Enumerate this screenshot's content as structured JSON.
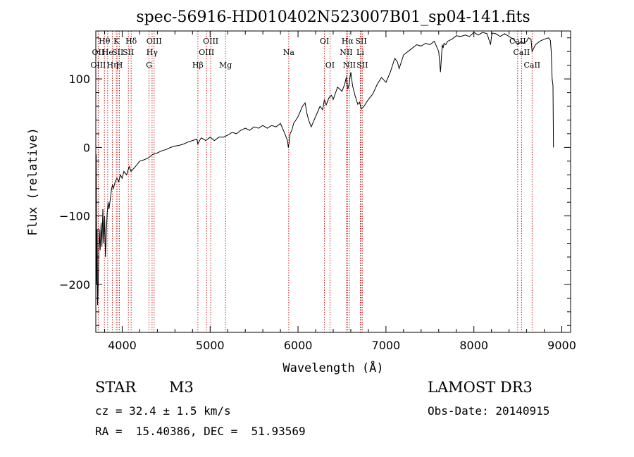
{
  "chart_data": {
    "type": "line",
    "title": "spec-56916-HD010402N523007B01_sp04-141.fits",
    "xlabel": "Wavelength (Å)",
    "ylabel": "Flux (relative)",
    "xlim": [
      3700,
      9100
    ],
    "ylim": [
      -270,
      170
    ],
    "xticks": [
      4000,
      5000,
      6000,
      7000,
      8000,
      9000
    ],
    "yticks": [
      -200,
      -100,
      0,
      100
    ],
    "grid": false,
    "series": [
      {
        "x": [
          3700,
          3705,
          3710,
          3715,
          3720,
          3730,
          3740,
          3750,
          3760,
          3770,
          3780,
          3790,
          3800,
          3810,
          3820,
          3830,
          3840,
          3850,
          3860,
          3870,
          3880,
          3890,
          3900,
          3920,
          3940,
          3960,
          3980,
          4000,
          4020,
          4050,
          4080,
          4100,
          4150,
          4200,
          4250,
          4300,
          4350,
          4400,
          4450,
          4500,
          4550,
          4600,
          4650,
          4700,
          4750,
          4800,
          4850,
          4860,
          4880,
          4900,
          4950,
          5000,
          5050,
          5100,
          5150,
          5200,
          5250,
          5300,
          5350,
          5400,
          5450,
          5500,
          5550,
          5600,
          5650,
          5700,
          5750,
          5800,
          5850,
          5880,
          5890,
          5900,
          5910,
          5930,
          5950,
          6000,
          6050,
          6080,
          6100,
          6120,
          6150,
          6200,
          6250,
          6280,
          6300,
          6320,
          6350,
          6380,
          6400,
          6450,
          6500,
          6530,
          6550,
          6565,
          6580,
          6600,
          6620,
          6650,
          6680,
          6700,
          6720,
          6750,
          6800,
          6850,
          6900,
          6950,
          7000,
          7050,
          7100,
          7130,
          7150,
          7200,
          7250,
          7300,
          7350,
          7400,
          7450,
          7500,
          7550,
          7600,
          7620,
          7640,
          7650,
          7660,
          7680,
          7700,
          7750,
          7800,
          7850,
          7900,
          7950,
          8000,
          8050,
          8100,
          8150,
          8190,
          8200,
          8210,
          8250,
          8300,
          8350,
          8400,
          8450,
          8500,
          8540,
          8560,
          8600,
          8620,
          8650,
          8662,
          8700,
          8750,
          8800,
          8850,
          8870,
          8880,
          8890,
          8900,
          8905
        ],
        "y": [
          -240,
          -10,
          -200,
          -120,
          -230,
          -190,
          -120,
          -150,
          -110,
          -145,
          -90,
          -140,
          -100,
          -160,
          -120,
          -95,
          -80,
          -90,
          -80,
          -70,
          -60,
          -55,
          -60,
          -50,
          -45,
          -50,
          -40,
          -45,
          -35,
          -40,
          -28,
          -35,
          -28,
          -20,
          -18,
          -15,
          -10,
          -8,
          -5,
          -3,
          0,
          2,
          3,
          5,
          8,
          10,
          12,
          5,
          10,
          14,
          10,
          15,
          10,
          15,
          15,
          18,
          22,
          20,
          25,
          28,
          25,
          30,
          28,
          32,
          28,
          32,
          30,
          35,
          20,
          10,
          0,
          8,
          20,
          25,
          35,
          45,
          60,
          65,
          50,
          40,
          30,
          45,
          60,
          55,
          70,
          62,
          72,
          76,
          70,
          88,
          82,
          92,
          103,
          85,
          92,
          110,
          90,
          75,
          63,
          66,
          56,
          60,
          70,
          78,
          92,
          102,
          95,
          110,
          130,
          125,
          115,
          135,
          140,
          145,
          150,
          148,
          152,
          150,
          155,
          140,
          110,
          150,
          145,
          152,
          150,
          155,
          158,
          163,
          162,
          164,
          162,
          168,
          164,
          168,
          166,
          150,
          162,
          167,
          166,
          162,
          166,
          162,
          158,
          150,
          155,
          152,
          155,
          160,
          158,
          140,
          150,
          155,
          158,
          160,
          156,
          140,
          100,
          90,
          0
        ]
      }
    ],
    "line_annotations": [
      {
        "label": "Hθ",
        "x": 3798,
        "row": 1
      },
      {
        "label": "OII",
        "x": 3727,
        "row": 2
      },
      {
        "label": "OIII",
        "x": 3727,
        "row": 3
      },
      {
        "label": "He",
        "x": 3835,
        "row": 2
      },
      {
        "label": "Hη",
        "x": 3889,
        "row": 3
      },
      {
        "label": "K",
        "x": 3934,
        "row": 1
      },
      {
        "label": "SII",
        "x": 3950,
        "row": 2
      },
      {
        "label": "H",
        "x": 3969,
        "row": 3
      },
      {
        "label": "Hδ",
        "x": 4102,
        "row": 1
      },
      {
        "label": "SII",
        "x": 4070,
        "row": 2
      },
      {
        "label": "OIII",
        "x": 4363,
        "row": 1
      },
      {
        "label": "Hγ",
        "x": 4340,
        "row": 2
      },
      {
        "label": "G",
        "x": 4305,
        "row": 3
      },
      {
        "label": "Hβ",
        "x": 4861,
        "row": 3
      },
      {
        "label": "OIII",
        "x": 5007,
        "row": 1
      },
      {
        "label": "OIII",
        "x": 4959,
        "row": 2
      },
      {
        "label": "Mg",
        "x": 5175,
        "row": 3
      },
      {
        "label": "Na",
        "x": 5894,
        "row": 2
      },
      {
        "label": "OI",
        "x": 6300,
        "row": 1
      },
      {
        "label": "OI",
        "x": 6363,
        "row": 3
      },
      {
        "label": "Hα",
        "x": 6563,
        "row": 1
      },
      {
        "label": "NII",
        "x": 6548,
        "row": 2
      },
      {
        "label": "NII",
        "x": 6584,
        "row": 3
      },
      {
        "label": "SII",
        "x": 6717,
        "row": 1
      },
      {
        "label": "Li",
        "x": 6708,
        "row": 2
      },
      {
        "label": "SII",
        "x": 6731,
        "row": 3
      },
      {
        "label": "CaII",
        "x": 8498,
        "row": 1
      },
      {
        "label": "CaII",
        "x": 8542,
        "row": 2
      },
      {
        "label": "CaII",
        "x": 8662,
        "row": 3
      }
    ],
    "colors": {
      "line": "#000000",
      "annotation": "#cc0000"
    }
  },
  "info": {
    "object_type": "STAR",
    "subclass": "M3",
    "survey": "LAMOST DR3",
    "cz": "cz = 32.4 ± 1.5 km/s",
    "obs_date": "Obs-Date: 20140915",
    "radec": "RA =  15.40386, DEC =  51.93569"
  }
}
